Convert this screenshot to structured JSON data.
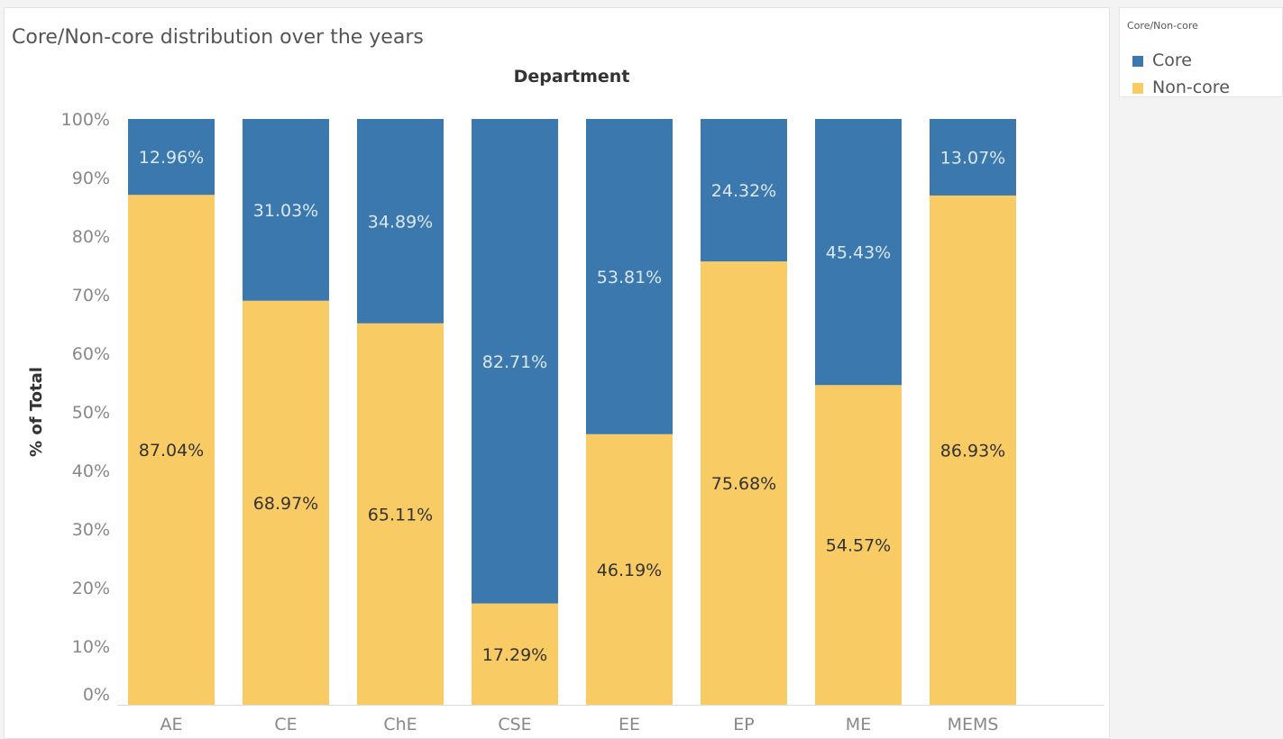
{
  "title": "Core/Non-core distribution over the years",
  "legend": {
    "title": "Core/Non-core",
    "items": [
      {
        "label": "Core",
        "color": "#3b78ad"
      },
      {
        "label": "Non-core",
        "color": "#f9cb64"
      }
    ]
  },
  "chart_data": {
    "type": "bar",
    "stacked": true,
    "column_header": "Department",
    "ylabel": "% of Total",
    "ylim": [
      0,
      100
    ],
    "yticks": [
      "0%",
      "10%",
      "20%",
      "30%",
      "40%",
      "50%",
      "60%",
      "70%",
      "80%",
      "90%",
      "100%"
    ],
    "categories": [
      "AE",
      "CE",
      "ChE",
      "CSE",
      "EE",
      "EP",
      "ME",
      "MEMS"
    ],
    "series": [
      {
        "name": "Non-core",
        "color": "#f9cb64",
        "values": [
          87.04,
          68.97,
          65.11,
          17.29,
          46.19,
          75.68,
          54.57,
          86.93
        ],
        "labels": [
          "87.04%",
          "68.97%",
          "65.11%",
          "17.29%",
          "46.19%",
          "75.68%",
          "54.57%",
          "86.93%"
        ]
      },
      {
        "name": "Core",
        "color": "#3b78ad",
        "values": [
          12.96,
          31.03,
          34.89,
          82.71,
          53.81,
          24.32,
          45.43,
          13.07
        ],
        "labels": [
          "12.96%",
          "31.03%",
          "34.89%",
          "82.71%",
          "53.81%",
          "24.32%",
          "45.43%",
          "13.07%"
        ]
      }
    ]
  }
}
